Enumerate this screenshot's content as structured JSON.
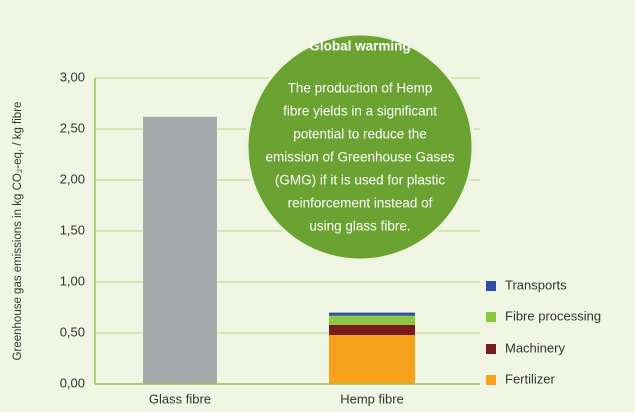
{
  "chart_data": {
    "type": "stacked_bar",
    "y_axis_label": "Greenhouse gas emissions in kg CO₂-eq. / kg fibre",
    "categories": [
      "Glass fibre",
      "Hemp fibre"
    ],
    "series": [
      {
        "color": "#a8a9ad",
        "values": [
          2.62,
          null
        ]
      },
      {
        "name": "Fertilizer",
        "color": "#f7a21b",
        "values": [
          null,
          0.48
        ]
      },
      {
        "name": "Machinery",
        "color": "#7a1a1a",
        "values": [
          null,
          0.1
        ]
      },
      {
        "name": "Fibre processing",
        "color": "#8dc63f",
        "values": [
          null,
          0.09
        ]
      },
      {
        "name": "Transports",
        "color": "#2b4fa3",
        "values": [
          null,
          0.03
        ]
      }
    ],
    "ylim": [
      0,
      3
    ],
    "yticks": [
      {
        "value": 0,
        "label": "0,00"
      },
      {
        "value": 0.5,
        "label": "0,50"
      },
      {
        "value": 1,
        "label": "1,00"
      },
      {
        "value": 1.5,
        "label": "1,50"
      },
      {
        "value": 2,
        "label": "2,00"
      },
      {
        "value": 2.5,
        "label": "2,50"
      },
      {
        "value": 3,
        "label": "3,00"
      }
    ],
    "grid": true,
    "legend": "right",
    "annotation": {
      "title": "Global warming",
      "lines": [
        "The production of Hemp",
        "fibre yields in a significant",
        "potential to reduce the",
        "emission of Greenhouse Gases",
        "(GMG) if it is used for plastic",
        "reinforcement instead of",
        "using glass fibre."
      ]
    }
  }
}
